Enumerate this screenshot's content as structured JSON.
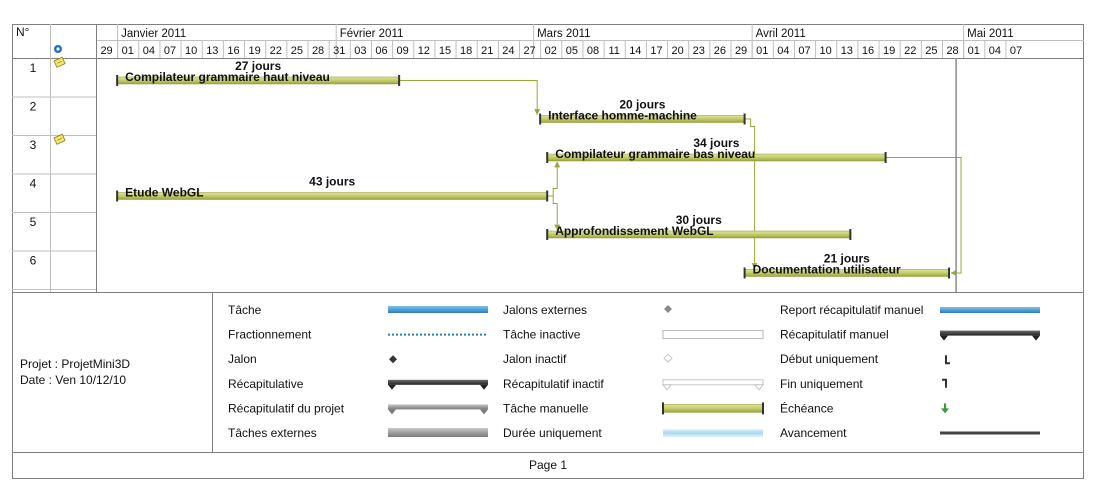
{
  "header": {
    "col_num": "N°"
  },
  "months": [
    {
      "label": "Janvier 2011",
      "start": "2011-01-01"
    },
    {
      "label": "Février 2011",
      "start": "2011-02-01"
    },
    {
      "label": "Mars 2011",
      "start": "2011-03-01"
    },
    {
      "label": "Avril 2011",
      "start": "2011-04-01"
    },
    {
      "label": "Mai 2011",
      "start": "2011-05-01"
    }
  ],
  "day_ticks": [
    "29",
    "01",
    "04",
    "07",
    "10",
    "13",
    "16",
    "19",
    "22",
    "25",
    "28",
    "31",
    "03",
    "06",
    "09",
    "12",
    "15",
    "18",
    "21",
    "24",
    "27",
    "02",
    "05",
    "08",
    "11",
    "14",
    "17",
    "20",
    "23",
    "26",
    "29",
    "01",
    "04",
    "07",
    "10",
    "13",
    "16",
    "19",
    "22",
    "25",
    "28",
    "01",
    "04",
    "07"
  ],
  "chart_data": {
    "type": "gantt",
    "x_range": [
      "2010-12-29",
      "2011-05-08"
    ],
    "status_date": "2011-04-29",
    "tasks": [
      {
        "id": "1",
        "name": "Compilateur grammaire haut niveau",
        "duration": "27 jours",
        "start": "2011-01-01",
        "end": "2011-02-09",
        "note_icon": true
      },
      {
        "id": "2",
        "name": "Interface homme-machine",
        "duration": "20 jours",
        "start": "2011-03-02",
        "end": "2011-03-30",
        "note_icon": false
      },
      {
        "id": "3",
        "name": "Compilateur grammaire bas niveau",
        "duration": "34 jours",
        "start": "2011-03-03",
        "end": "2011-04-19",
        "note_icon": true
      },
      {
        "id": "4",
        "name": "Etude WebGL",
        "duration": "43 jours",
        "start": "2011-01-01",
        "end": "2011-03-02",
        "note_icon": false
      },
      {
        "id": "5",
        "name": "Approfondissement WebGL",
        "duration": "30 jours",
        "start": "2011-03-03",
        "end": "2011-04-14",
        "note_icon": false
      },
      {
        "id": "6",
        "name": "Documentation utilisateur",
        "duration": "21 jours",
        "start": "2011-03-31",
        "end": "2011-04-28",
        "note_icon": false
      }
    ],
    "dependencies": [
      {
        "from": "1",
        "to": "2"
      },
      {
        "from": "4",
        "to": "3"
      },
      {
        "from": "4",
        "to": "5"
      },
      {
        "from": "2",
        "to": "6"
      },
      {
        "from": "3",
        "to": "6"
      }
    ]
  },
  "project": {
    "line1": "Projet : ProjetMini3D",
    "line2": "Date : Ven 10/12/10"
  },
  "legend": [
    [
      {
        "label": "Tâche",
        "sym": "task"
      },
      {
        "label": "Fractionnement",
        "sym": "split"
      },
      {
        "label": "Jalon",
        "sym": "milestone"
      },
      {
        "label": "Récapitulative",
        "sym": "summary"
      },
      {
        "label": "Récapitulatif du projet",
        "sym": "project-summary"
      },
      {
        "label": "Tâches externes",
        "sym": "external-tasks"
      }
    ],
    [
      {
        "label": "Jalons externes",
        "sym": "external-milestone"
      },
      {
        "label": "Tâche inactive",
        "sym": "inactive-task"
      },
      {
        "label": "Jalon inactif",
        "sym": "inactive-milestone"
      },
      {
        "label": "Récapitulatif inactif",
        "sym": "inactive-summary"
      },
      {
        "label": "Tâche manuelle",
        "sym": "manual-task"
      },
      {
        "label": "Durée uniquement",
        "sym": "duration-only"
      }
    ],
    [
      {
        "label": "Report récapitulatif manuel",
        "sym": "manual-summary-rollup"
      },
      {
        "label": "Récapitulatif manuel",
        "sym": "manual-summary"
      },
      {
        "label": "Début uniquement",
        "sym": "start-only"
      },
      {
        "label": "Fin uniquement",
        "sym": "finish-only"
      },
      {
        "label": "Échéance",
        "sym": "deadline"
      },
      {
        "label": "Avancement",
        "sym": "progress"
      }
    ]
  ],
  "footer": {
    "page": "Page 1"
  },
  "colors": {
    "bar": "#c3cc6a",
    "bar_dark": "#8b9432",
    "link": "#9aa83a",
    "grid": "#bfbfbf",
    "border": "#7f7f7f"
  }
}
